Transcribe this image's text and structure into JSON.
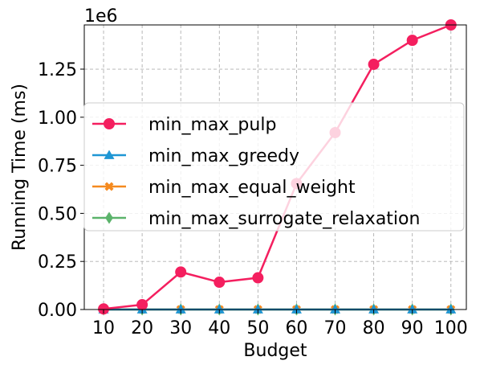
{
  "chart_data": {
    "type": "line",
    "title": "",
    "xlabel": "Budget",
    "ylabel": "Running Time (ms)",
    "y_offset_label": "1e6",
    "x": [
      10,
      20,
      30,
      40,
      50,
      60,
      70,
      80,
      90,
      100
    ],
    "x_ticks": [
      "10",
      "20",
      "30",
      "40",
      "50",
      "60",
      "70",
      "80",
      "90",
      "100"
    ],
    "y_ticks": [
      0,
      0.25,
      0.5,
      0.75,
      1.0,
      1.25
    ],
    "y_tick_labels": [
      "0.00",
      "0.25",
      "0.50",
      "0.75",
      "1.00",
      "1.25"
    ],
    "ylim": [
      0,
      1.48
    ],
    "xlim": [
      5,
      104
    ],
    "grid": true,
    "legend_position": "center-left",
    "series": [
      {
        "name": "min_max_pulp",
        "color": "#f41f5f",
        "marker": "circle",
        "values": [
          0.003,
          0.025,
          0.195,
          0.142,
          0.165,
          0.655,
          0.92,
          1.275,
          1.4,
          1.48
        ]
      },
      {
        "name": "min_max_greedy",
        "color": "#1e96d4",
        "marker": "triangle",
        "values": [
          0,
          0,
          0,
          0,
          0,
          0,
          0,
          0,
          0,
          0
        ]
      },
      {
        "name": "min_max_equal_weight",
        "color": "#f58a1f",
        "marker": "x",
        "values": [
          0,
          0,
          0,
          0,
          0,
          0,
          0,
          0,
          0,
          0
        ]
      },
      {
        "name": "min_max_surrogate_relaxation",
        "color": "#5bb36b",
        "marker": "diamond",
        "values": [
          0,
          0,
          0,
          0,
          0,
          0,
          0,
          0,
          0,
          0
        ]
      }
    ]
  }
}
